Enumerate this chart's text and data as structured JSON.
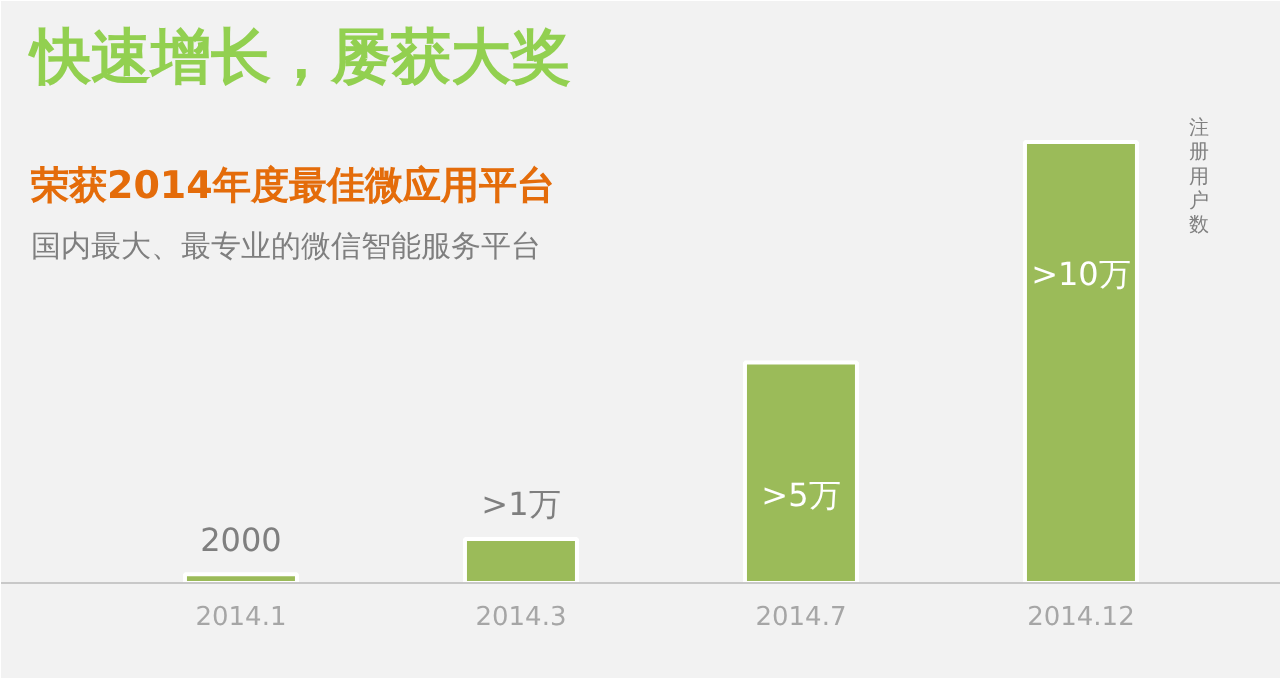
{
  "chart_data": {
    "type": "bar",
    "title": "快速增长，屡获大奖",
    "subtitle": "荣获2014年度最佳微应用平台",
    "annotations": [
      "国内最大、最专业的微信智能服务平台"
    ],
    "ylabel": "注册用户数",
    "categories": [
      "2014.1",
      "2014.3",
      "2014.7",
      "2014.12"
    ],
    "values": [
      2000,
      10000,
      50000,
      100000
    ],
    "value_labels": [
      "2000",
      ">1万",
      ">5万",
      ">10万"
    ],
    "color": "#9bbb59"
  }
}
